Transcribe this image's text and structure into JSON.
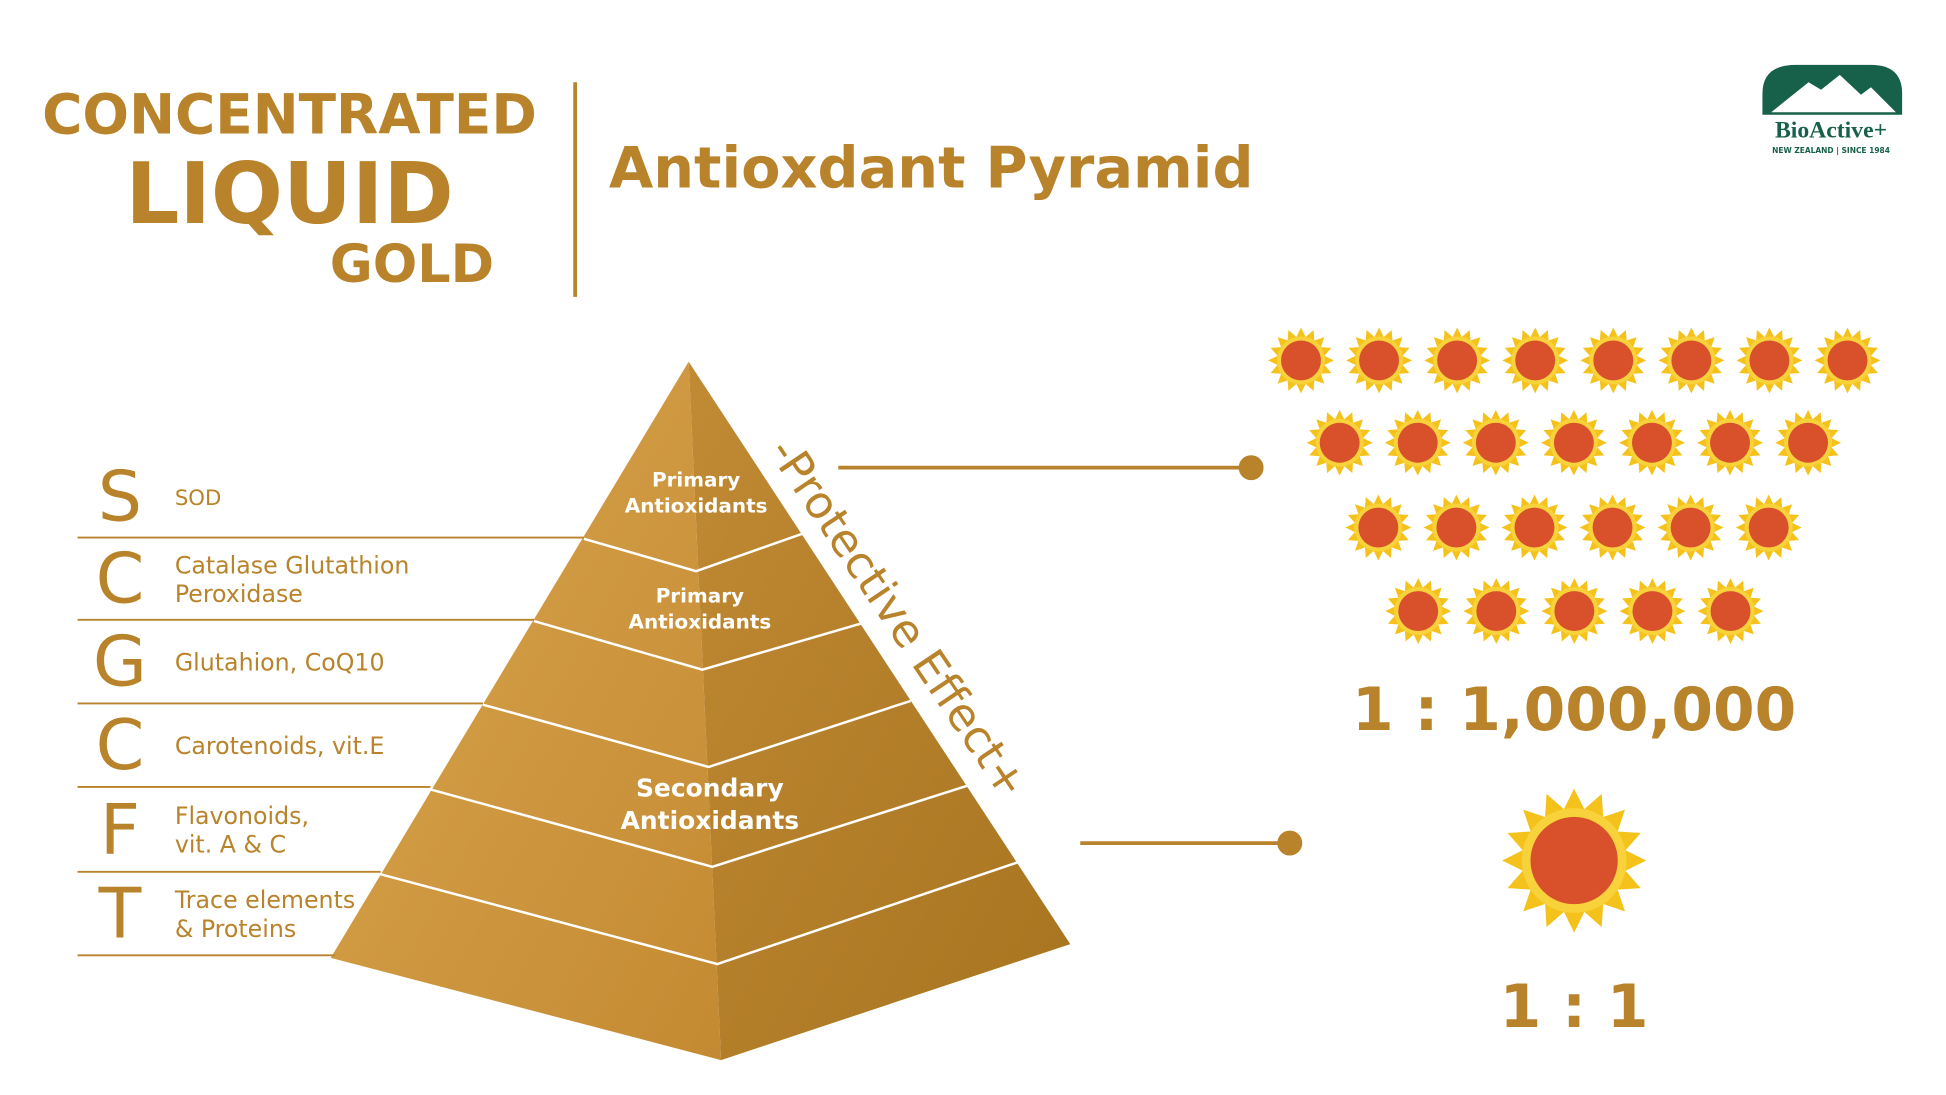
{
  "header": {
    "line1": "CONCENTRATED",
    "line2": "LIQUID",
    "line3": "GOLD",
    "title": "Antioxdant Pyramid"
  },
  "logo": {
    "name": "BioActive+",
    "tagline": "NEW ZEALAND | SINCE 1984"
  },
  "rows": [
    {
      "letter": "S",
      "lines": [
        "SOD"
      ]
    },
    {
      "letter": "C",
      "lines": [
        "Catalase Glutathion",
        "Peroxidase"
      ]
    },
    {
      "letter": "G",
      "lines": [
        "Glutahion, CoQ10"
      ]
    },
    {
      "letter": "C",
      "lines": [
        "Carotenoids, vit.E"
      ]
    },
    {
      "letter": "F",
      "lines": [
        "Flavonoids,",
        "vit. A & C"
      ]
    },
    {
      "letter": "T",
      "lines": [
        "Trace elements",
        "& Proteins"
      ]
    }
  ],
  "pyramid": {
    "labels": [
      [
        "Primary",
        "Antioxidants"
      ],
      [
        "Primary",
        "Antioxidants"
      ],
      [
        "Secondary",
        "Antioxidants"
      ]
    ],
    "side": "-Protective Effect+"
  },
  "ratios": [
    "1 : 1,000,000",
    "1 : 1"
  ]
}
